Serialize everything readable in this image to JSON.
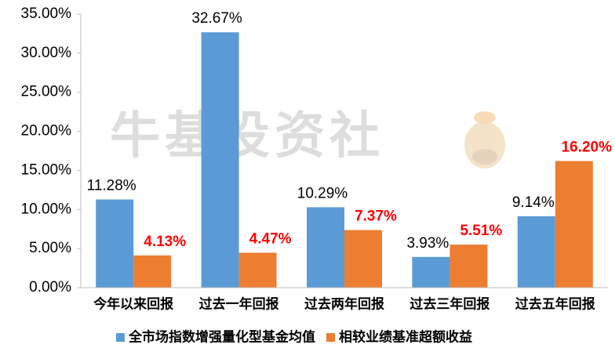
{
  "chart_data": {
    "type": "bar",
    "watermark": "牛基投资社",
    "categories": [
      "今年以来回报",
      "过去一年回报",
      "过去两年回报",
      "过去三年回报",
      "过去五年回报"
    ],
    "series": [
      {
        "name": "全市场指数增强量化型基金均值",
        "color": "#5b9bd5",
        "label_color": "#000000",
        "values": [
          11.28,
          32.67,
          10.29,
          3.93,
          9.14
        ],
        "value_labels": [
          "11.28%",
          "32.67%",
          "10.29%",
          "3.93%",
          "9.14%"
        ]
      },
      {
        "name": "相较业绩基准超额收益",
        "color": "#ed7d31",
        "label_color": "#ff0000",
        "values": [
          4.13,
          4.47,
          7.37,
          5.51,
          16.2
        ],
        "value_labels": [
          "4.13%",
          "4.47%",
          "7.37%",
          "5.51%",
          "16.20%"
        ]
      }
    ],
    "ylim": [
      0,
      35
    ],
    "yticks": [
      {
        "value": 0,
        "label": "0.00%"
      },
      {
        "value": 5,
        "label": "5.00%"
      },
      {
        "value": 10,
        "label": "10.00%"
      },
      {
        "value": 15,
        "label": "15.00%"
      },
      {
        "value": 20,
        "label": "20.00%"
      },
      {
        "value": 25,
        "label": "25.00%"
      },
      {
        "value": 30,
        "label": "30.00%"
      },
      {
        "value": 35,
        "label": "35.00%"
      }
    ],
    "grid": false,
    "legend": "bottom"
  }
}
